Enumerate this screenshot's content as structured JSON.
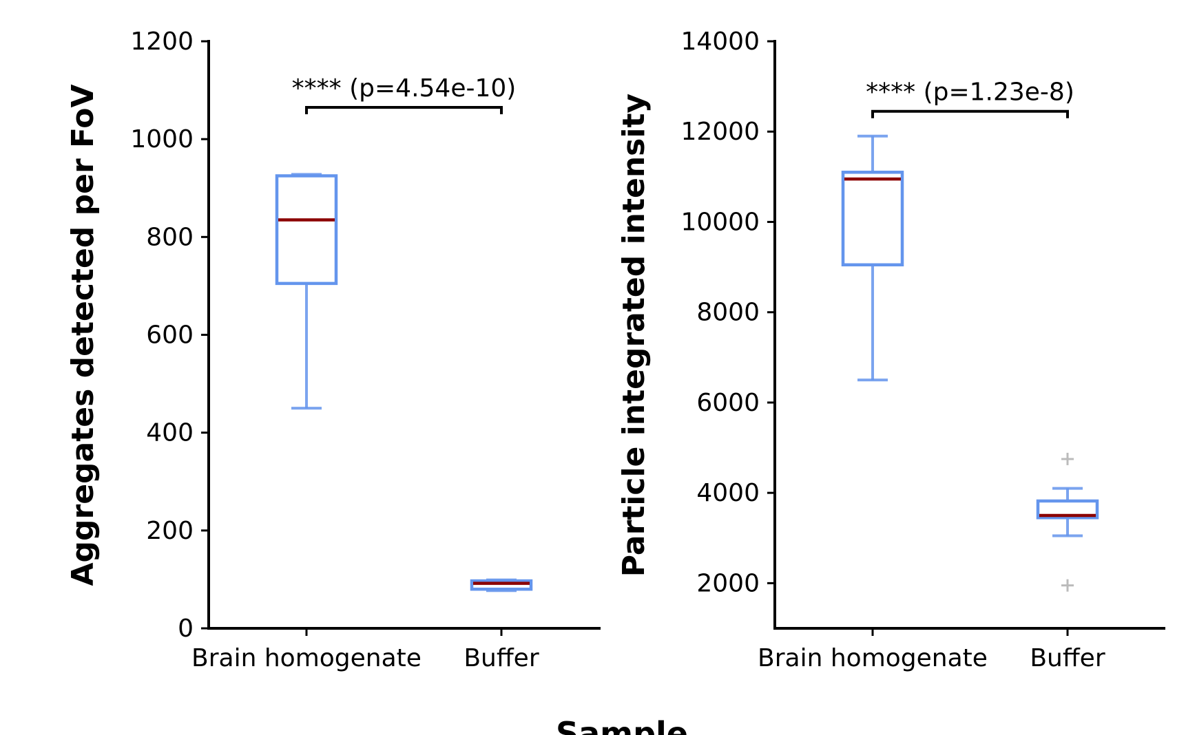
{
  "figure": {
    "shared_xlabel": "Sample"
  },
  "chart_data": [
    {
      "type": "box",
      "categories": [
        "Brain homogenate",
        "Buffer"
      ],
      "ylabel": "Aggregates detected per FoV",
      "xlabel": "",
      "ylim": [
        0,
        1200
      ],
      "yticks": [
        0,
        200,
        400,
        600,
        800,
        1000,
        1200
      ],
      "ytick_labels": [
        "0",
        "200",
        "400",
        "600",
        "800",
        "1000",
        "1200"
      ],
      "boxes": [
        {
          "category": "Brain homogenate",
          "whisker_low": 450,
          "q1": 705,
          "median": 835,
          "q3": 925,
          "whisker_high": 928,
          "outliers": []
        },
        {
          "category": "Buffer",
          "whisker_low": 77,
          "q1": 80,
          "median": 92,
          "q3": 97,
          "whisker_high": 99,
          "outliers": []
        }
      ],
      "significance": {
        "label": "**** (p=4.54e-10)",
        "between": [
          "Brain homogenate",
          "Buffer"
        ],
        "level": 1065
      },
      "colors": {
        "box": "#6495ED",
        "median": "#8B0000",
        "outlier": "#BBBBBB",
        "axis": "#000000"
      },
      "grid": false
    },
    {
      "type": "box",
      "categories": [
        "Brain homogenate",
        "Buffer"
      ],
      "ylabel": "Particle integrated intensity",
      "xlabel": "",
      "ylim": [
        1000,
        14000
      ],
      "yticks": [
        2000,
        4000,
        6000,
        8000,
        10000,
        12000,
        14000
      ],
      "ytick_labels": [
        "2000",
        "4000",
        "6000",
        "8000",
        "10000",
        "12000",
        "14000"
      ],
      "boxes": [
        {
          "category": "Brain homogenate",
          "whisker_low": 6500,
          "q1": 9050,
          "median": 10950,
          "q3": 11100,
          "whisker_high": 11900,
          "outliers": []
        },
        {
          "category": "Buffer",
          "whisker_low": 3050,
          "q1": 3450,
          "median": 3500,
          "q3": 3820,
          "whisker_high": 4100,
          "outliers": [
            4750,
            1950
          ]
        }
      ],
      "significance": {
        "label": "**** (p=1.23e-8)",
        "between": [
          "Brain homogenate",
          "Buffer"
        ],
        "level": 12450
      },
      "colors": {
        "box": "#6495ED",
        "median": "#8B0000",
        "outlier": "#BBBBBB",
        "axis": "#000000"
      },
      "grid": false
    }
  ]
}
